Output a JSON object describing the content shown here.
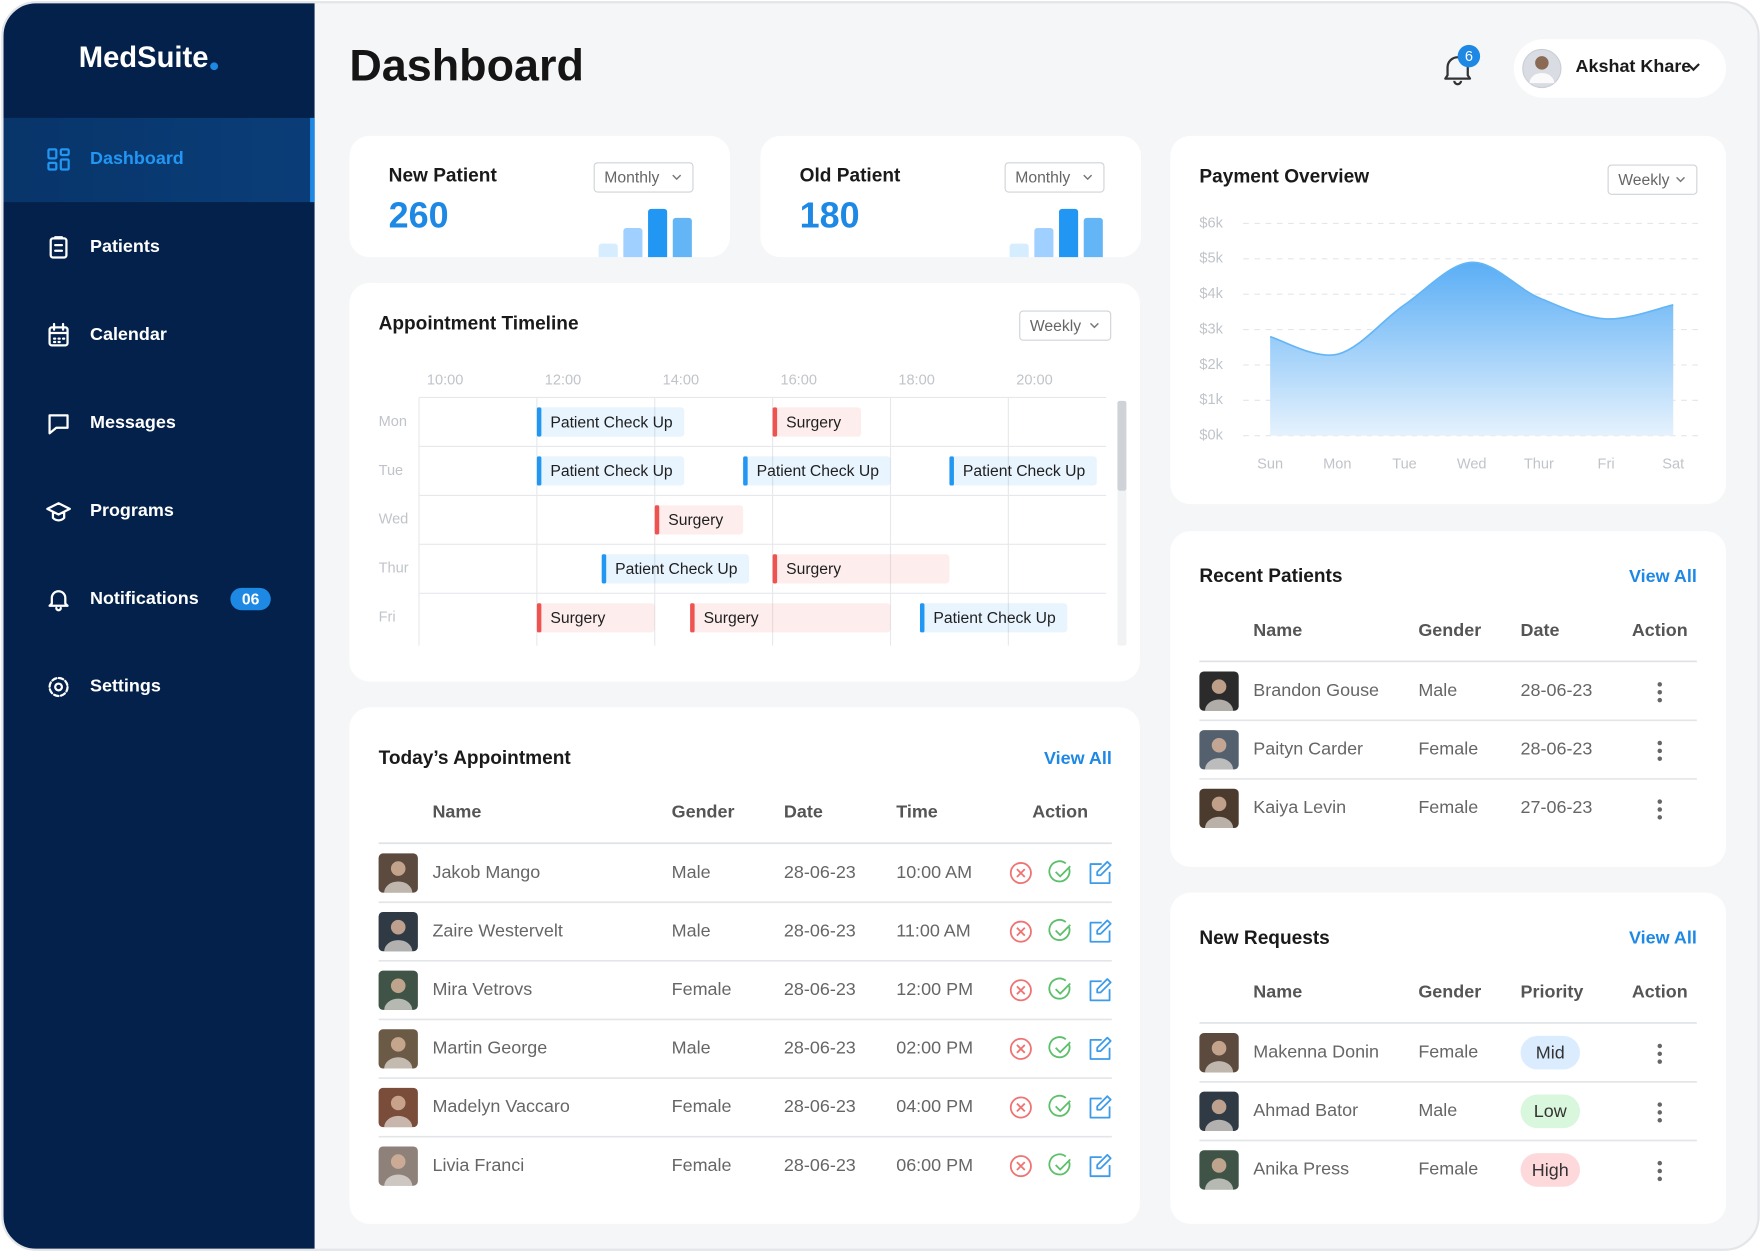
{
  "sidebar": {
    "logo": "MedSuite",
    "active_index": 0,
    "nav": [
      {
        "label": "Dashboard"
      },
      {
        "label": "Patients"
      },
      {
        "label": "Calendar"
      },
      {
        "label": "Messages"
      },
      {
        "label": "Programs"
      },
      {
        "label": "Notifications",
        "badge": "06"
      },
      {
        "label": "Settings"
      }
    ]
  },
  "header": {
    "title": "Dashboard",
    "notification_count": 6,
    "user": "Akshat Khare"
  },
  "stats": [
    {
      "title": "New Patient",
      "value": 260,
      "period": "Monthly"
    },
    {
      "title": "Old Patient",
      "value": 180,
      "period": "Monthly"
    }
  ],
  "chart_data": [
    {
      "type": "area",
      "title": "Payment Overview",
      "period": "Weekly",
      "categories": [
        "Sun",
        "Mon",
        "Tue",
        "Wed",
        "Thur",
        "Fri",
        "Sat"
      ],
      "values": [
        2800,
        2300,
        3700,
        4900,
        3900,
        3300,
        3700
      ],
      "color": "#64b5f6",
      "ylim": [
        0,
        6000
      ],
      "yticks": [
        {
          "value": 0,
          "label": "$0k"
        },
        {
          "value": 1000,
          "label": "$1k"
        },
        {
          "value": 2000,
          "label": "$2k"
        },
        {
          "value": 3000,
          "label": "$3k"
        },
        {
          "value": 4000,
          "label": "$4k"
        },
        {
          "value": 5000,
          "label": "$5k"
        },
        {
          "value": 6000,
          "label": "$6k"
        }
      ],
      "grid": true
    },
    {
      "type": "timeline",
      "title": "Appointment Timeline",
      "period": "Weekly",
      "categories": [
        "Mon",
        "Tue",
        "Wed",
        "Thur",
        "Fri"
      ],
      "xlim": [
        10,
        21.66
      ],
      "xticks": [
        {
          "value": 10,
          "label": "10:00"
        },
        {
          "value": 12,
          "label": "12:00"
        },
        {
          "value": 14,
          "label": "14:00"
        },
        {
          "value": 16,
          "label": "16:00"
        },
        {
          "value": 18,
          "label": "18:00"
        },
        {
          "value": 20,
          "label": "20:00"
        }
      ],
      "grid": true,
      "tasks": [
        {
          "row": 0,
          "label": "Patient Check Up",
          "start": 12,
          "end": 14.5,
          "color": "#2196f3"
        },
        {
          "row": 0,
          "label": "Surgery",
          "start": 16,
          "end": 17.5,
          "color": "#ef5350"
        },
        {
          "row": 1,
          "label": "Patient Check Up",
          "start": 12,
          "end": 14.5,
          "color": "#2196f3"
        },
        {
          "row": 1,
          "label": "Patient Check Up",
          "start": 15.5,
          "end": 18,
          "color": "#2196f3"
        },
        {
          "row": 1,
          "label": "Patient Check Up",
          "start": 19,
          "end": 21.5,
          "color": "#2196f3"
        },
        {
          "row": 2,
          "label": "Surgery",
          "start": 14,
          "end": 15.5,
          "color": "#ef5350"
        },
        {
          "row": 3,
          "label": "Patient Check Up",
          "start": 13.1,
          "end": 15.6,
          "color": "#2196f3"
        },
        {
          "row": 3,
          "label": "Surgery",
          "start": 16,
          "end": 19,
          "color": "#ef5350"
        },
        {
          "row": 4,
          "label": "Surgery",
          "start": 12,
          "end": 14,
          "color": "#ef5350"
        },
        {
          "row": 4,
          "label": "Surgery",
          "start": 14.6,
          "end": 18,
          "color": "#ef5350"
        },
        {
          "row": 4,
          "label": "Patient Check Up",
          "start": 18.5,
          "end": 21,
          "color": "#2196f3"
        }
      ]
    }
  ],
  "todays_appointment": {
    "title": "Today’s Appointment",
    "view_all": "View All",
    "columns": [
      "Name",
      "Gender",
      "Date",
      "Time",
      "Action"
    ],
    "rows": [
      [
        "Jakob Mango",
        "Male",
        "28-06-23",
        "10:00 AM"
      ],
      [
        "Zaire Westervelt",
        "Male",
        "28-06-23",
        "11:00 AM"
      ],
      [
        "Mira Vetrovs",
        "Female",
        "28-06-23",
        "12:00 PM"
      ],
      [
        "Martin George",
        "Male",
        "28-06-23",
        "02:00 PM"
      ],
      [
        "Madelyn Vaccaro",
        "Female",
        "28-06-23",
        "04:00 PM"
      ],
      [
        "Livia Franci",
        "Female",
        "28-06-23",
        "06:00 PM"
      ]
    ]
  },
  "recent_patients": {
    "title": "Recent Patients",
    "view_all": "View All",
    "columns": [
      "Name",
      "Gender",
      "Date",
      "Action"
    ],
    "rows": [
      [
        "Brandon Gouse",
        "Male",
        "28-06-23"
      ],
      [
        "Paityn Carder",
        "Female",
        "28-06-23"
      ],
      [
        "Kaiya Levin",
        "Female",
        "27-06-23"
      ]
    ]
  },
  "new_requests": {
    "title": "New Requests",
    "view_all": "View All",
    "columns": [
      "Name",
      "Gender",
      "Priority",
      "Action"
    ],
    "rows": [
      [
        "Makenna Donin",
        "Female",
        "Mid"
      ],
      [
        "Ahmad Bator",
        "Male",
        "Low"
      ],
      [
        "Anika Press",
        "Female",
        "High"
      ]
    ],
    "priority_colors": [
      "#dcecff",
      "#d9f7dc",
      "#fdd9dc"
    ]
  }
}
